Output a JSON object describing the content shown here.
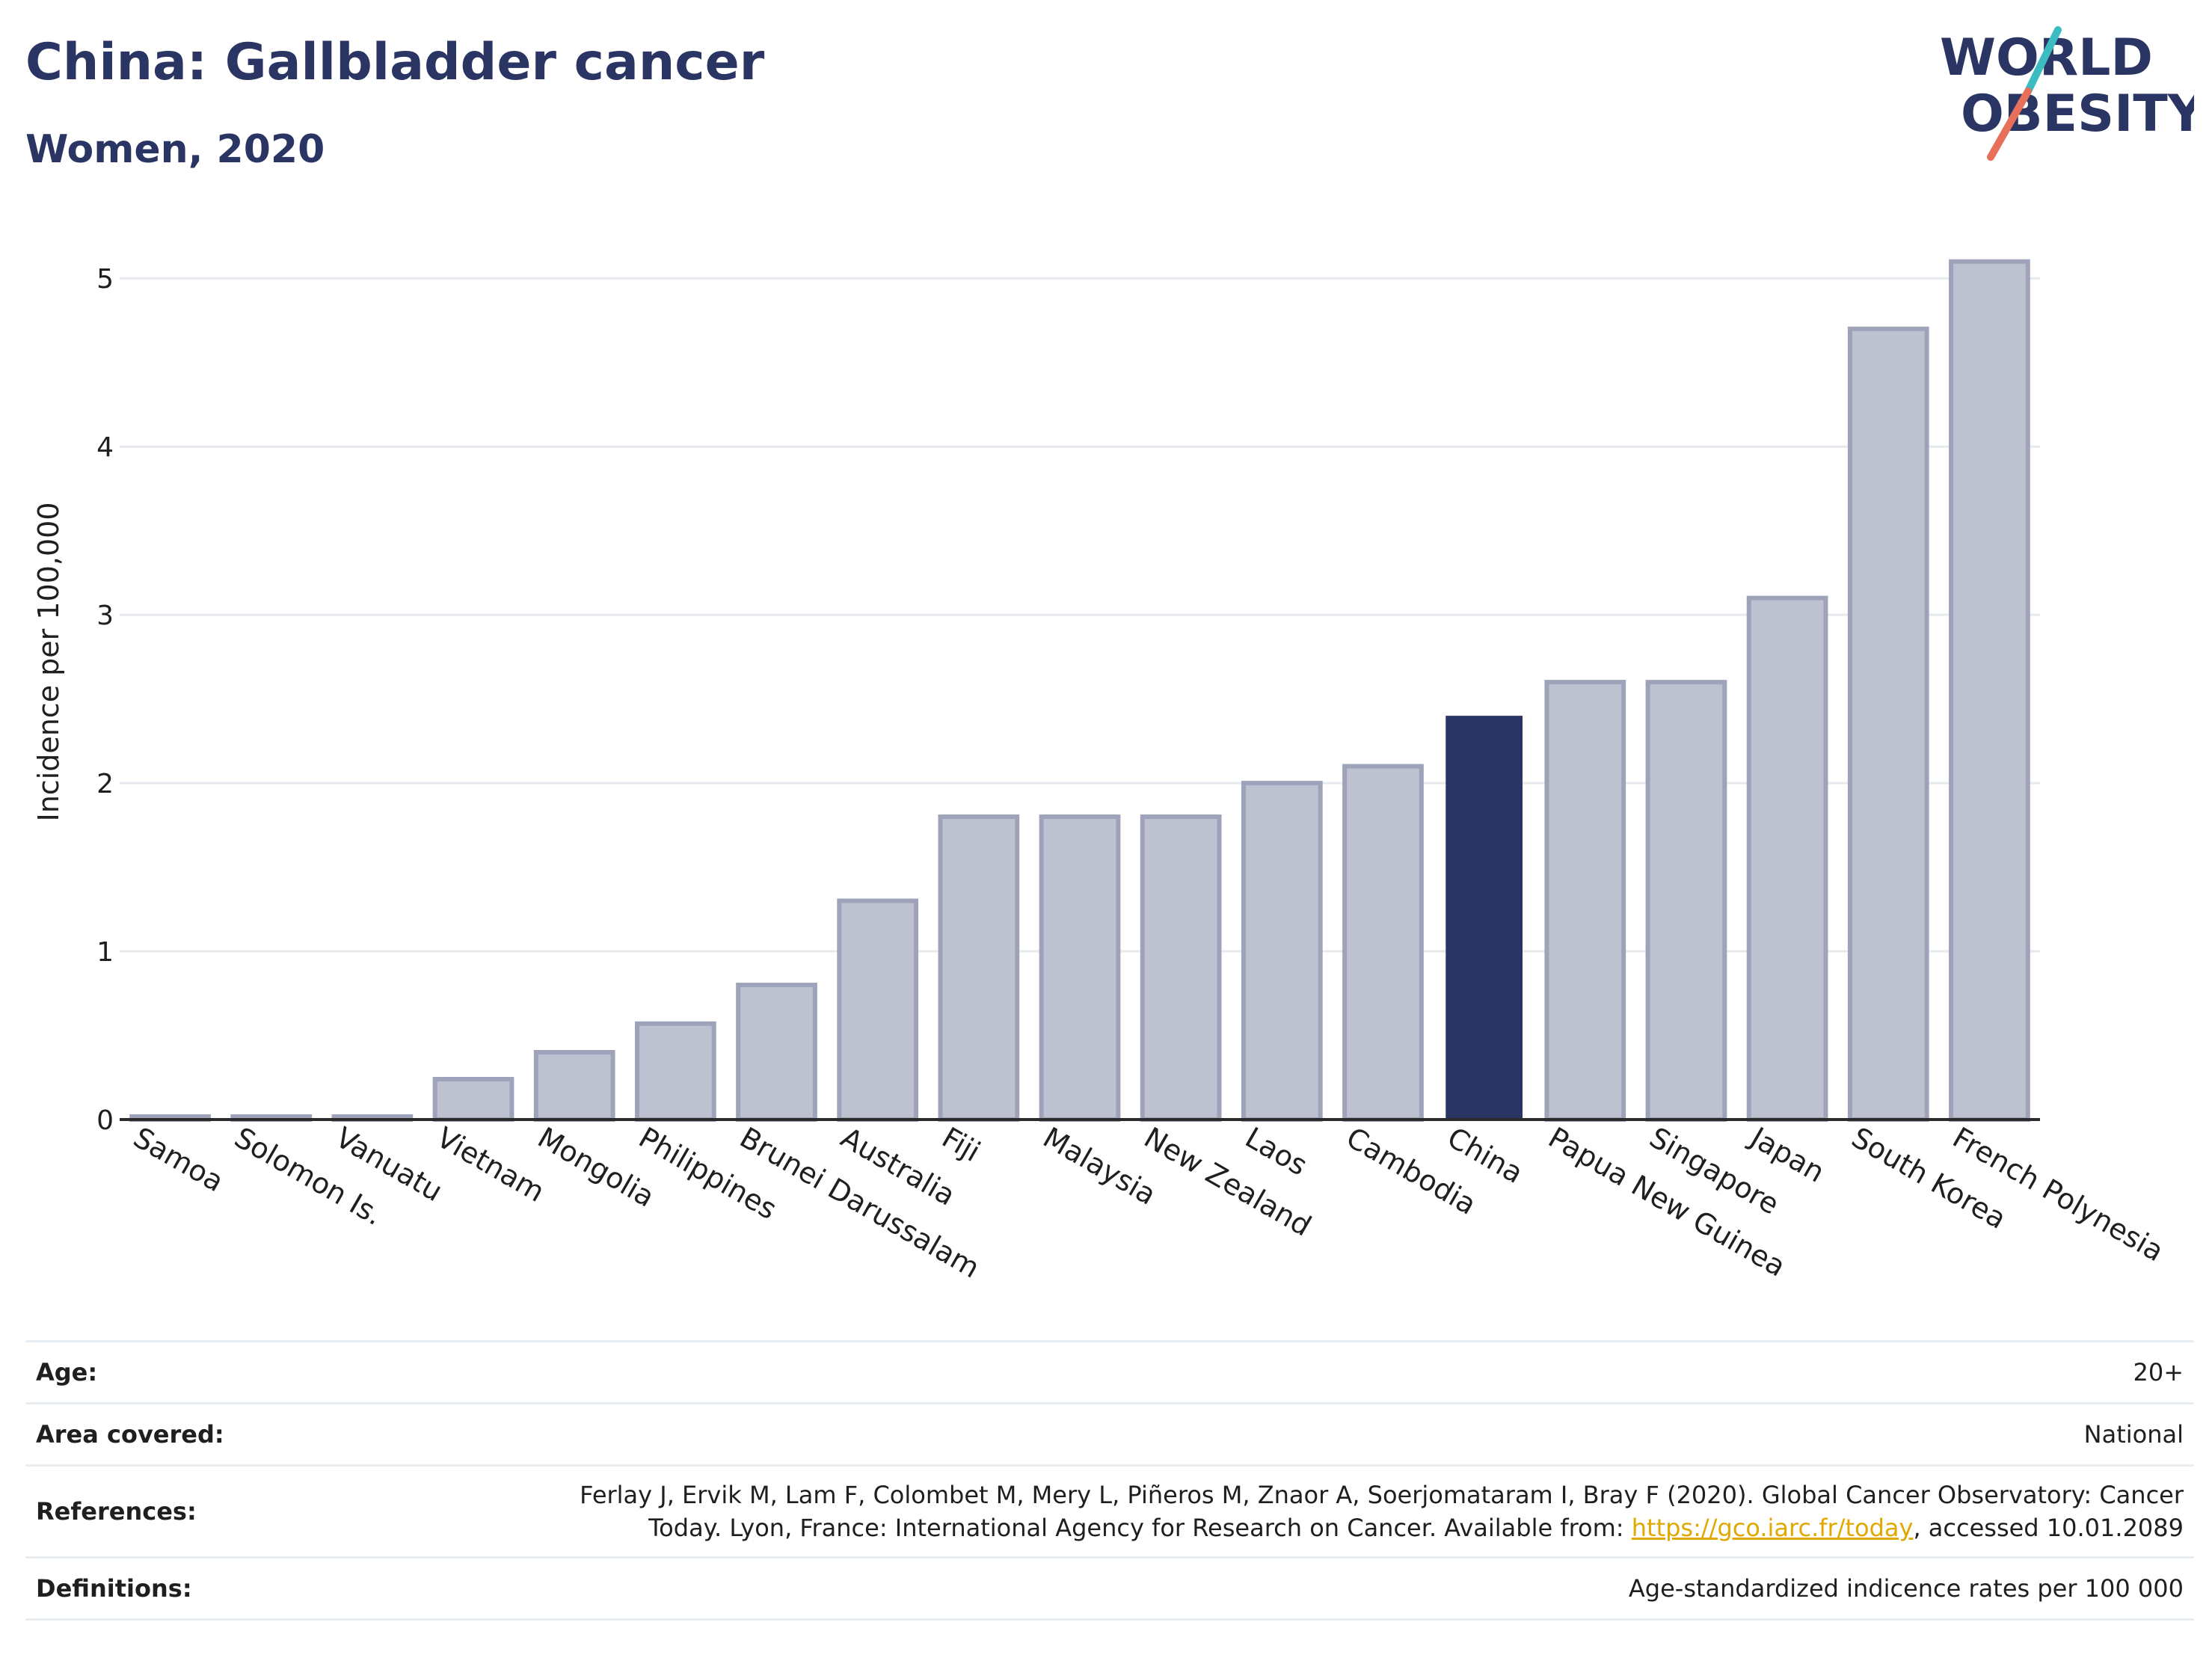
{
  "header": {
    "title": "China: Gallbladder cancer",
    "subtitle": "Women, 2020"
  },
  "logo": {
    "line1": "WORLD",
    "line2": "OBESITY",
    "colors": {
      "text": "#2b3563",
      "slash_teal": "#3bbcc0",
      "slash_coral": "#e8705a"
    }
  },
  "colors": {
    "bar_default": "#bec2d0",
    "bar_default_stroke": "#9ea3ba",
    "bar_highlight": "#2b3563",
    "grid": "#e6eaee",
    "axis": "#2b2b2b"
  },
  "chart_data": {
    "type": "bar",
    "title": "China: Gallbladder cancer",
    "subtitle": "Women, 2020",
    "ylabel": "Incidence per 100,000",
    "xlabel": "",
    "ylim": [
      0,
      5.25
    ],
    "yticks": [
      0,
      1,
      2,
      3,
      4,
      5
    ],
    "grid": true,
    "highlight": "China",
    "categories": [
      "Samoa",
      "Solomon Is.",
      "Vanuatu",
      "Vietnam",
      "Mongolia",
      "Philippines",
      "Brunei Darussalam",
      "Australia",
      "Fiji",
      "Malaysia",
      "New Zealand",
      "Laos",
      "Cambodia",
      "China",
      "Papua New Guinea",
      "Singapore",
      "Japan",
      "South Korea",
      "French Polynesia"
    ],
    "values": [
      0.0,
      0.0,
      0.0,
      0.24,
      0.4,
      0.57,
      0.8,
      1.3,
      1.8,
      1.8,
      1.8,
      2.0,
      2.1,
      2.4,
      2.6,
      2.6,
      3.1,
      4.7,
      5.1
    ]
  },
  "info": {
    "age_label": "Age:",
    "age_value": "20+",
    "area_label": "Area covered:",
    "area_value": "National",
    "references_label": "References:",
    "references_line1": "Ferlay J, Ervik M, Lam F, Colombet M, Mery L, Piñeros M, Znaor A, Soerjomataram I, Bray F (2020). Global Cancer Observatory: Cancer",
    "references_line2_pre": "Today. Lyon, France: International Agency for Research on Cancer. Available from: ",
    "references_link": "https://gco.iarc.fr/today",
    "references_line2_post": ", accessed 10.01.2089",
    "definitions_label": "Definitions:",
    "definitions_value": "Age-standardized indicence rates per 100 000"
  }
}
